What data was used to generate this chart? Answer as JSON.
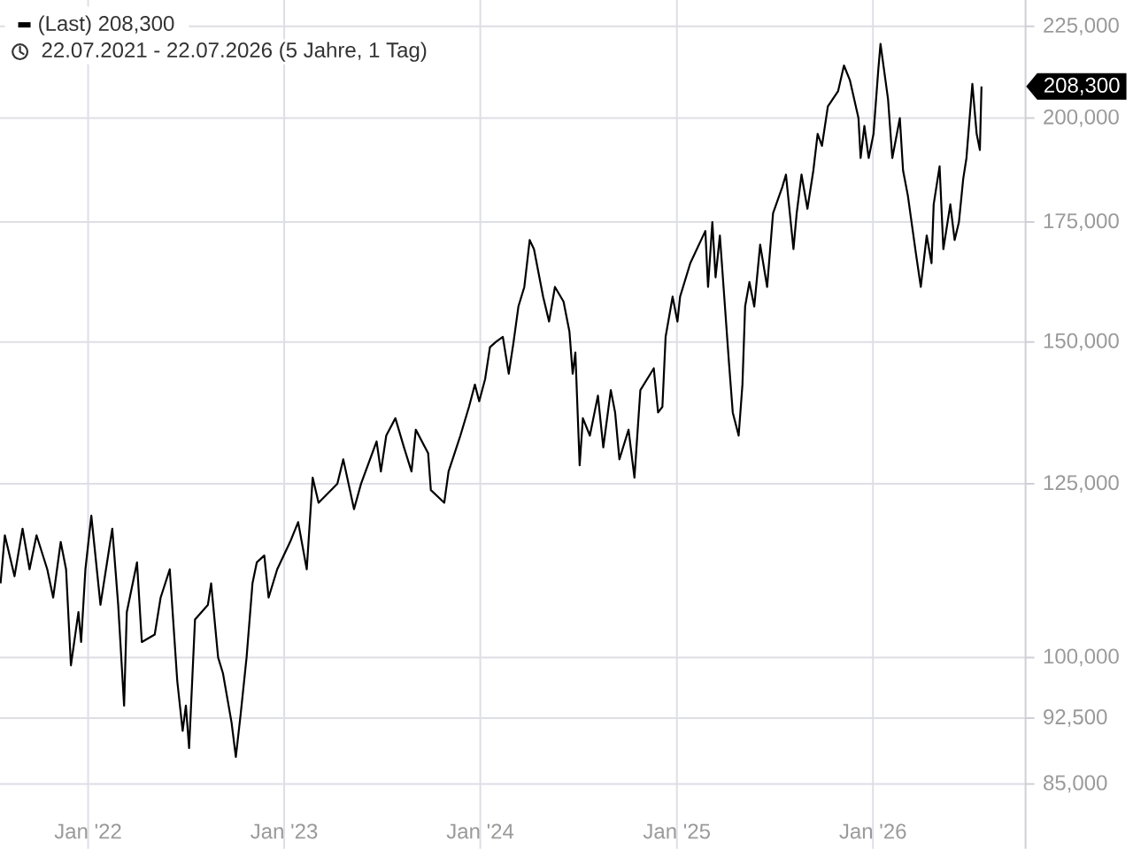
{
  "chart_data": {
    "type": "line",
    "subtitle": "22.07.2021 - 22.07.2026  (5 Jahre, 1 Tag)",
    "x": [
      "2021-07-22",
      "2021-07-30",
      "2021-08-17",
      "2021-09-01",
      "2021-09-14",
      "2021-09-27",
      "2021-10-17",
      "2021-10-28",
      "2021-11-11",
      "2021-11-21",
      "2021-11-30",
      "2021-12-14",
      "2021-12-19",
      "2021-12-27",
      "2022-01-07",
      "2022-01-24",
      "2022-02-15",
      "2022-02-26",
      "2022-03-09",
      "2022-03-14",
      "2022-04-02",
      "2022-04-11",
      "2022-05-05",
      "2022-05-16",
      "2022-06-02",
      "2022-06-16",
      "2022-06-26",
      "2022-07-02",
      "2022-07-08",
      "2022-07-19",
      "2022-08-12",
      "2022-08-18",
      "2022-08-31",
      "2022-09-09",
      "2022-09-25",
      "2022-10-03",
      "2022-10-12",
      "2022-10-23",
      "2022-11-03",
      "2022-11-11",
      "2022-11-25",
      "2022-12-03",
      "2022-12-19",
      "2023-01-12",
      "2023-01-27",
      "2023-02-12",
      "2023-02-23",
      "2023-03-06",
      "2023-04-10",
      "2023-04-21",
      "2023-05-11",
      "2023-05-24",
      "2023-06-22",
      "2023-06-30",
      "2023-07-10",
      "2023-07-27",
      "2023-08-12",
      "2023-08-26",
      "2023-09-03",
      "2023-09-26",
      "2023-10-01",
      "2023-10-26",
      "2023-11-03",
      "2023-11-25",
      "2023-12-11",
      "2023-12-22",
      "2023-12-30",
      "2024-01-10",
      "2024-01-19",
      "2024-01-30",
      "2024-02-12",
      "2024-02-23",
      "2024-03-03",
      "2024-03-12",
      "2024-03-23",
      "2024-04-02",
      "2024-04-10",
      "2024-04-27",
      "2024-05-08",
      "2024-05-19",
      "2024-06-04",
      "2024-06-15",
      "2024-06-21",
      "2024-06-26",
      "2024-07-04",
      "2024-07-10",
      "2024-07-23",
      "2024-08-07",
      "2024-08-17",
      "2024-08-31",
      "2024-09-08",
      "2024-09-16",
      "2024-10-03",
      "2024-10-14",
      "2024-10-25",
      "2024-11-19",
      "2024-11-27",
      "2024-12-05",
      "2024-12-11",
      "2024-12-24",
      "2025-01-02",
      "2025-01-07",
      "2025-01-26",
      "2025-02-23",
      "2025-02-28",
      "2025-03-08",
      "2025-03-14",
      "2025-03-22",
      "2025-04-08",
      "2025-04-15",
      "2025-04-26",
      "2025-05-03",
      "2025-05-08",
      "2025-05-16",
      "2025-05-25",
      "2025-06-05",
      "2025-06-18",
      "2025-06-29",
      "2025-07-16",
      "2025-07-23",
      "2025-08-06",
      "2025-08-12",
      "2025-08-21",
      "2025-09-01",
      "2025-09-12",
      "2025-09-20",
      "2025-09-28",
      "2025-10-09",
      "2025-10-28",
      "2025-11-08",
      "2025-11-19",
      "2025-12-05",
      "2025-12-09",
      "2025-12-16",
      "2025-12-24",
      "2026-01-02",
      "2026-01-11",
      "2026-01-15",
      "2026-01-29",
      "2026-02-06",
      "2026-02-20",
      "2026-02-26",
      "2026-03-07",
      "2026-03-22",
      "2026-03-31",
      "2026-04-11",
      "2026-04-20",
      "2026-04-24",
      "2026-05-05",
      "2026-05-12",
      "2026-05-25",
      "2026-06-02",
      "2026-06-10",
      "2026-06-18",
      "2026-06-24",
      "2026-07-05",
      "2026-07-13",
      "2026-07-19",
      "2026-07-22"
    ],
    "series": [
      {
        "name": "(Last) 208,300",
        "color": "#000000",
        "values": [
          110000,
          117000,
          111000,
          118000,
          112000,
          117000,
          112000,
          108000,
          116000,
          112000,
          99000,
          106000,
          102000,
          112000,
          120000,
          107000,
          118000,
          107000,
          94000,
          106000,
          113000,
          102000,
          103000,
          108000,
          112000,
          97000,
          91000,
          94000,
          89000,
          105000,
          107000,
          110000,
          100000,
          98000,
          92000,
          88000,
          93000,
          100000,
          110000,
          113000,
          114000,
          108000,
          112000,
          116000,
          119000,
          112000,
          126000,
          122000,
          125000,
          129000,
          121000,
          125000,
          132000,
          127000,
          133000,
          136000,
          131000,
          127000,
          134000,
          130000,
          124000,
          122000,
          127000,
          133000,
          138000,
          142000,
          139000,
          143000,
          149000,
          150000,
          151000,
          144000,
          150000,
          157000,
          161000,
          171000,
          169000,
          159000,
          154000,
          161000,
          158000,
          152000,
          144000,
          148000,
          128000,
          136000,
          133000,
          140000,
          131000,
          141000,
          137000,
          129000,
          134000,
          126000,
          141000,
          145000,
          137000,
          138000,
          151000,
          159000,
          154000,
          159000,
          166000,
          173000,
          161000,
          175000,
          163000,
          172000,
          146000,
          137000,
          133000,
          142000,
          157000,
          162000,
          157000,
          170000,
          161000,
          177000,
          183000,
          186000,
          169000,
          177000,
          186000,
          178000,
          187000,
          196000,
          193000,
          203000,
          207000,
          214000,
          210000,
          200000,
          190000,
          198000,
          190000,
          196000,
          213000,
          220000,
          205000,
          190000,
          200000,
          187000,
          181000,
          168000,
          161000,
          172000,
          166000,
          179000,
          188000,
          169000,
          179000,
          171000,
          175000,
          185000,
          190000,
          209000,
          196000,
          192000,
          208300
        ]
      }
    ],
    "annotations": [
      "208,300"
    ],
    "xlim": [
      "2021-07-21",
      "2026-10-12"
    ],
    "ylim": [
      78200,
      232800
    ],
    "xticks": [
      {
        "value": "2022-01-01",
        "label": "Jan '22"
      },
      {
        "value": "2023-01-01",
        "label": "Jan '23"
      },
      {
        "value": "2024-01-01",
        "label": "Jan '24"
      },
      {
        "value": "2025-01-01",
        "label": "Jan '25"
      },
      {
        "value": "2026-01-01",
        "label": "Jan '26"
      }
    ],
    "yticks": [
      {
        "value": 85000,
        "label": "85,000"
      },
      {
        "value": 92500,
        "label": "92,500"
      },
      {
        "value": 100000,
        "label": "100,000"
      },
      {
        "value": 125000,
        "label": "125,000"
      },
      {
        "value": 150000,
        "label": "150,000"
      },
      {
        "value": 175000,
        "label": "175,000"
      },
      {
        "value": 200000,
        "label": "200,000"
      },
      {
        "value": 225000,
        "label": "225,000"
      }
    ],
    "log": "y",
    "grid": true,
    "legend": "top left"
  }
}
